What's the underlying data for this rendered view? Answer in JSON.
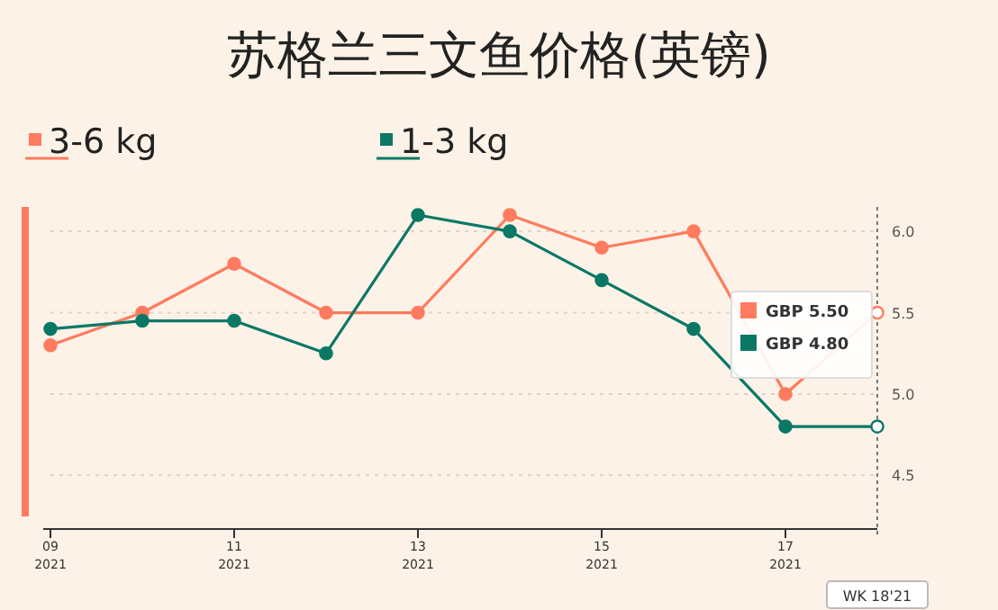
{
  "chart_data": {
    "type": "line",
    "title": "苏格兰三文鱼价格(英镑)",
    "categories": [
      "09\n2021",
      null,
      "11\n2021",
      null,
      "13\n2021",
      null,
      "15\n2021",
      null,
      "17\n2021",
      null
    ],
    "series": [
      {
        "name": "3-6 kg",
        "color": "#ff7b5f",
        "values": [
          5.3,
          5.5,
          5.8,
          5.5,
          5.5,
          6.1,
          5.9,
          6.0,
          5.0,
          5.5
        ]
      },
      {
        "name": "1-3 kg",
        "color": "#0b7866",
        "values": [
          5.4,
          5.45,
          5.45,
          5.25,
          6.1,
          6.0,
          5.7,
          5.4,
          4.8,
          4.8
        ]
      }
    ],
    "ylim": [
      4.17,
      6.15
    ],
    "yticks": [
      4.5,
      {
        "value": 5.0,
        "label": "5.0"
      },
      5.5,
      {
        "value": 6.0,
        "label": "6.0"
      }
    ],
    "annotations": [
      "GBP 5.50",
      "GBP 4.80",
      "WK 18'21"
    ],
    "grid": "y",
    "legend": "top left",
    "marker": "circle",
    "line_style": "solid"
  }
}
